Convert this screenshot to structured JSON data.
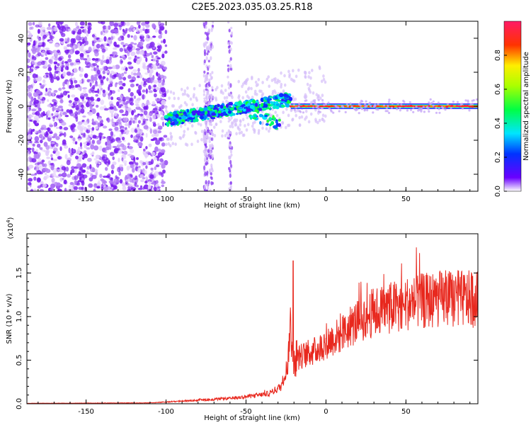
{
  "title": "C2E5.2023.035.03.25.R18",
  "colors": {
    "snr_line": "#e8281e",
    "spectrogram_noise": "#7a1cf0",
    "axis": "#000000",
    "ridge": "#ff2a2a"
  },
  "chart_data": [
    {
      "type": "heatmap",
      "name": "spectrogram",
      "xlabel": "Height of straight line (km)",
      "ylabel": "Frequency (Hz)",
      "xlim": [
        -187,
        95
      ],
      "ylim": [
        -50,
        50
      ],
      "x_ticks": [
        -150,
        -100,
        -50,
        0,
        50
      ],
      "x_tick_labels": [
        "-150",
        "-100",
        "-50",
        "0",
        "50"
      ],
      "y_ticks": [
        -40,
        -20,
        0,
        20,
        40
      ],
      "y_tick_labels": [
        "-40",
        "-20",
        "0",
        "20",
        "40"
      ],
      "regions": [
        {
          "label": "noise",
          "x_range": [
            -187,
            -100
          ],
          "freq_range": [
            -50,
            50
          ],
          "amplitude": 0.15
        },
        {
          "label": "emerging signal",
          "x_range": [
            -100,
            -22
          ],
          "freq_center_start": -8,
          "freq_center_end": 4,
          "amplitude": 0.35
        },
        {
          "label": "steady carrier",
          "x_range": [
            -22,
            95
          ],
          "freq_center": 0,
          "amplitude": 0.95
        }
      ],
      "colorbar": {
        "label": "Normalized spectral amplitude",
        "range": [
          0,
          1
        ],
        "ticks": [
          0.0,
          0.2,
          0.4,
          0.6,
          0.8
        ],
        "tick_labels": [
          "0.0",
          "0.2",
          "0.4",
          "0.6",
          "0.8"
        ]
      }
    },
    {
      "type": "line",
      "name": "snr",
      "xlabel": "Height of straight line (km)",
      "ylabel": "SNR (10 * v/v)",
      "y_scale_label": "(x10",
      "y_scale_exp": "4",
      "y_scale_close": ")",
      "xlim": [
        -187,
        95
      ],
      "ylim": [
        0,
        1.95
      ],
      "x_ticks": [
        -150,
        -100,
        -50,
        0,
        50
      ],
      "x_tick_labels": [
        "-150",
        "-100",
        "-50",
        "0",
        "50"
      ],
      "y_ticks": [
        0.0,
        0.5,
        1.0,
        1.5
      ],
      "y_tick_labels": [
        "0.0",
        "0.5",
        "1.0",
        "1.5"
      ],
      "envelope_x": [
        -187,
        -110,
        -90,
        -60,
        -45,
        -35,
        -28,
        -24,
        -22,
        -20,
        -15,
        -5,
        0,
        10,
        20,
        30,
        50,
        70,
        95
      ],
      "envelope_y": [
        0.005,
        0.01,
        0.03,
        0.06,
        0.09,
        0.12,
        0.2,
        0.45,
        0.85,
        0.5,
        0.55,
        0.62,
        0.7,
        0.8,
        0.95,
        1.05,
        1.15,
        1.2,
        1.2
      ]
    }
  ]
}
